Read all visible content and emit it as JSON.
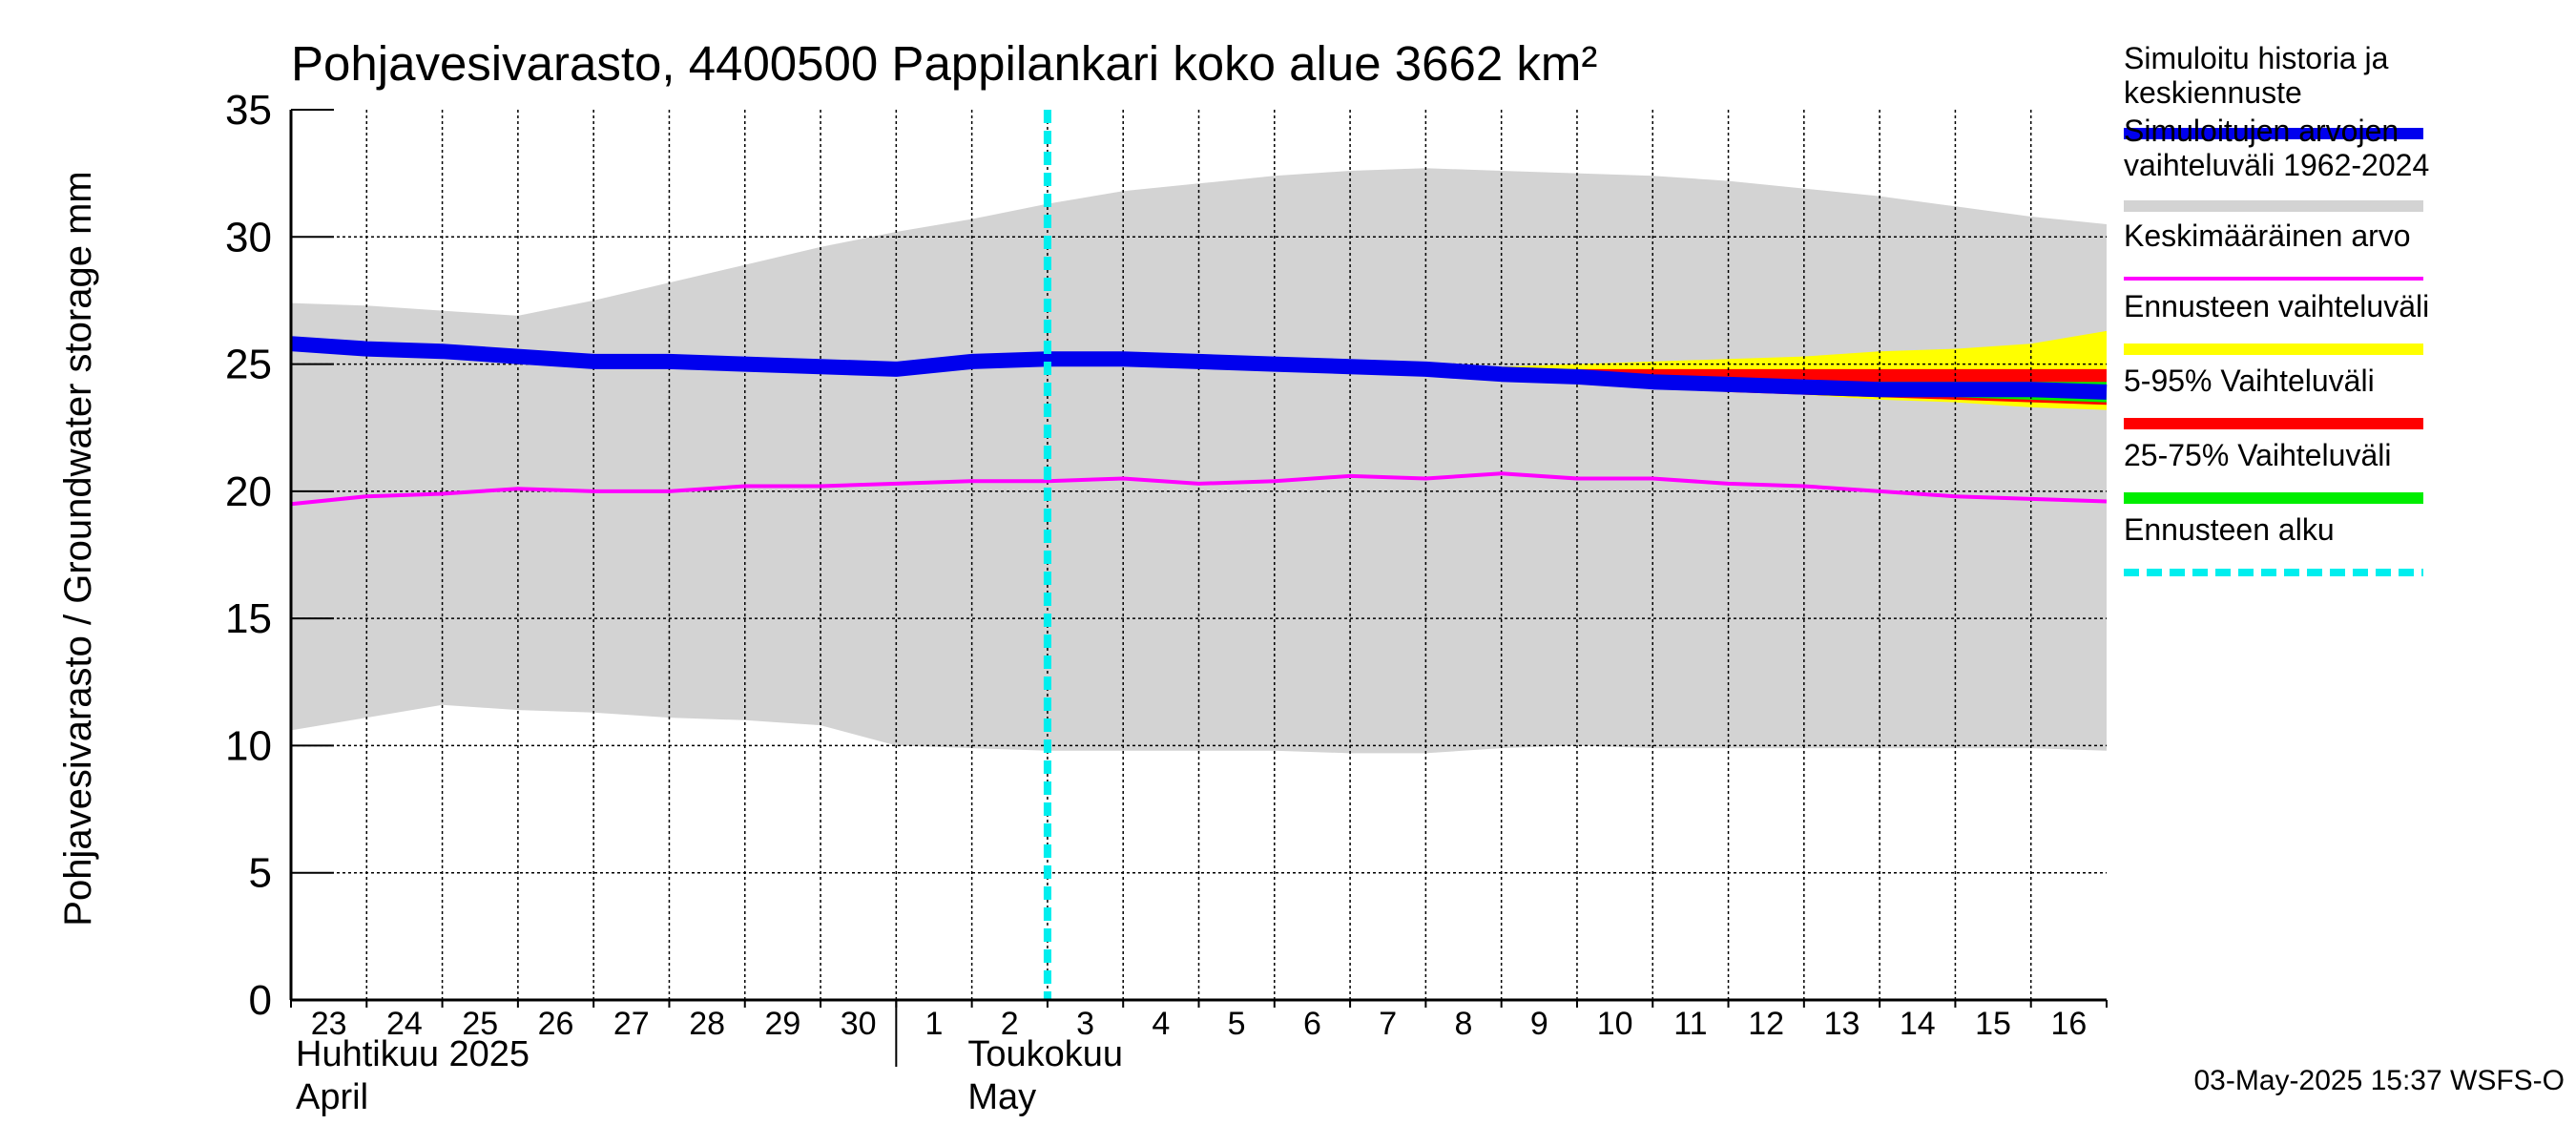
{
  "chart_data": {
    "type": "line",
    "title": "Pohjavesivarasto, 4400500 Pappilankari koko alue 3662 km²",
    "ylabel": "Pohjavesivarasto / Groundwater storage   mm",
    "ylim": [
      0,
      35
    ],
    "yticks": [
      0,
      5,
      10,
      15,
      20,
      25,
      30,
      35
    ],
    "x_day_labels": [
      "23",
      "24",
      "25",
      "26",
      "27",
      "28",
      "29",
      "30",
      "1",
      "2",
      "3",
      "4",
      "5",
      "6",
      "7",
      "8",
      "9",
      "10",
      "11",
      "12",
      "13",
      "14",
      "15",
      "16"
    ],
    "month_labels": [
      {
        "line1": "Huhtikuu  2025",
        "line2": "April",
        "day": "2025-04-23"
      },
      {
        "line1": "Toukokuu",
        "line2": "May",
        "day": "2025-05-01"
      }
    ],
    "x_dates": [
      "2025-04-23",
      "2025-04-24",
      "2025-04-25",
      "2025-04-26",
      "2025-04-27",
      "2025-04-28",
      "2025-04-29",
      "2025-04-30",
      "2025-05-01",
      "2025-05-02",
      "2025-05-03",
      "2025-05-04",
      "2025-05-05",
      "2025-05-06",
      "2025-05-07",
      "2025-05-08",
      "2025-05-09",
      "2025-05-10",
      "2025-05-11",
      "2025-05-12",
      "2025-05-13",
      "2025-05-14",
      "2025-05-15",
      "2025-05-16",
      "2025-05-17"
    ],
    "forecast_start": "2025-05-03",
    "series": [
      {
        "name": "Simuloitujen arvojen vaihteluväli 1962-2024",
        "color": "#d3d3d3",
        "kind": "band",
        "upper": [
          27.4,
          27.3,
          27.1,
          26.9,
          27.5,
          28.2,
          28.9,
          29.6,
          30.2,
          30.7,
          31.3,
          31.8,
          32.1,
          32.4,
          32.6,
          32.7,
          32.6,
          32.5,
          32.4,
          32.2,
          31.9,
          31.6,
          31.2,
          30.8,
          30.5
        ],
        "lower": [
          10.6,
          11.1,
          11.6,
          11.4,
          11.3,
          11.1,
          11.0,
          10.8,
          10.0,
          9.9,
          9.8,
          9.8,
          9.8,
          9.8,
          9.7,
          9.7,
          9.9,
          10.0,
          9.9,
          9.9,
          9.9,
          9.9,
          9.9,
          9.9,
          9.8
        ]
      },
      {
        "name": "Ennusteen vaihteluväli",
        "color": "#ffff00",
        "kind": "band",
        "upper": [
          null,
          null,
          null,
          null,
          null,
          null,
          null,
          null,
          null,
          null,
          25.2,
          25.2,
          25.1,
          25.0,
          24.9,
          24.9,
          24.9,
          25.0,
          25.1,
          25.2,
          25.3,
          25.5,
          25.6,
          25.8,
          26.3
        ],
        "lower": [
          null,
          null,
          null,
          null,
          null,
          null,
          null,
          null,
          null,
          null,
          25.2,
          25.2,
          25.1,
          25.0,
          24.8,
          24.7,
          24.5,
          24.3,
          24.1,
          24.0,
          23.8,
          23.6,
          23.5,
          23.3,
          23.2
        ]
      },
      {
        "name": "5-95% Vaihteluväli",
        "color": "#ff0000",
        "kind": "band",
        "upper": [
          null,
          null,
          null,
          null,
          null,
          null,
          null,
          null,
          null,
          null,
          25.2,
          25.2,
          25.1,
          25.0,
          24.9,
          24.9,
          24.8,
          24.8,
          24.8,
          24.8,
          24.8,
          24.8,
          24.8,
          24.8,
          24.8
        ],
        "lower": [
          null,
          null,
          null,
          null,
          null,
          null,
          null,
          null,
          null,
          null,
          25.2,
          25.2,
          25.1,
          25.0,
          24.8,
          24.7,
          24.5,
          24.3,
          24.1,
          23.9,
          23.8,
          23.7,
          23.6,
          23.5,
          23.4
        ]
      },
      {
        "name": "25-75% Vaihteluväli",
        "color": "#00ee00",
        "kind": "band",
        "upper": [
          null,
          null,
          null,
          null,
          null,
          null,
          null,
          null,
          null,
          null,
          25.2,
          25.2,
          25.1,
          25.0,
          24.9,
          24.8,
          24.6,
          24.5,
          24.4,
          24.3,
          24.3,
          24.3,
          24.3,
          24.3,
          24.3
        ],
        "lower": [
          null,
          null,
          null,
          null,
          null,
          null,
          null,
          null,
          null,
          null,
          25.2,
          25.2,
          25.1,
          25.0,
          24.8,
          24.7,
          24.5,
          24.3,
          24.1,
          24.0,
          23.9,
          23.8,
          23.7,
          23.6,
          23.5
        ]
      },
      {
        "name": "Keskimääräinen arvo",
        "color": "#ff00ff",
        "kind": "line",
        "width": 4,
        "values": [
          19.5,
          19.8,
          19.9,
          20.1,
          20.0,
          20.0,
          20.2,
          20.2,
          20.3,
          20.4,
          20.4,
          20.5,
          20.3,
          20.4,
          20.6,
          20.5,
          20.7,
          20.5,
          20.5,
          20.3,
          20.2,
          20.0,
          19.8,
          19.7,
          19.6
        ]
      },
      {
        "name": "Simuloitu historia ja keskiennuste",
        "color": "#0000ee",
        "kind": "line",
        "width": 16,
        "values": [
          25.8,
          25.6,
          25.5,
          25.3,
          25.1,
          25.1,
          25.0,
          24.9,
          24.8,
          25.1,
          25.2,
          25.2,
          25.1,
          25.0,
          24.9,
          24.8,
          24.6,
          24.5,
          24.3,
          24.2,
          24.1,
          24.0,
          24.0,
          24.0,
          23.9
        ]
      }
    ],
    "legend": [
      {
        "label": "Simuloitu historia ja keskiennuste",
        "color": "#0000ee",
        "style": "thick"
      },
      {
        "label": "Simuloitujen arvojen vaihteluväli 1962-2024",
        "color": "#d3d3d3",
        "style": "thick"
      },
      {
        "label": "Keskimääräinen arvo",
        "color": "#ff00ff",
        "style": "thin"
      },
      {
        "label": "Ennusteen vaihteluväli",
        "color": "#ffff00",
        "style": "thick"
      },
      {
        "label": "5-95% Vaihteluväli",
        "color": "#ff0000",
        "style": "thick"
      },
      {
        "label": "25-75% Vaihteluväli",
        "color": "#00ee00",
        "style": "thick"
      },
      {
        "label": "Ennusteen alku",
        "color": "#00eeee",
        "style": "dashed"
      }
    ],
    "legend_position": "right",
    "grid": true,
    "forecast_line_color": "#00eeee",
    "footer": "03-May-2025 15:37 WSFS-O"
  }
}
